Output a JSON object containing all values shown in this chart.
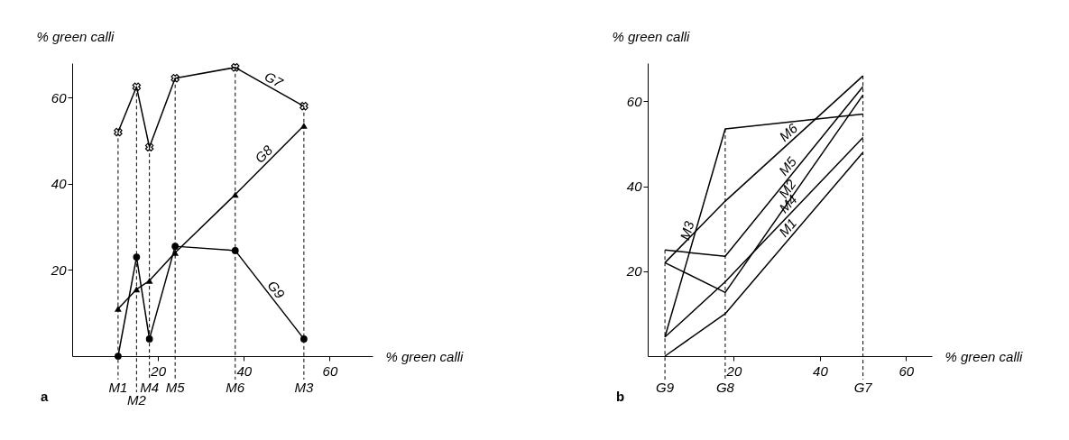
{
  "chart_data": [
    {
      "type": "line",
      "xlabel": "% green calli",
      "ylabel": "% green calli",
      "x": [
        10.7,
        15,
        18,
        24,
        38,
        54
      ],
      "xlim": [
        0,
        70
      ],
      "ylim": [
        0,
        68
      ],
      "xticks": [
        20,
        40,
        60
      ],
      "yticks": [
        20,
        40,
        60
      ],
      "grid": false,
      "annotations": [
        "a"
      ],
      "series": [
        {
          "name": "G7",
          "color": "#000000",
          "marker": "cross",
          "values": [
            52,
            62.5,
            48.5,
            64.5,
            67,
            58
          ]
        },
        {
          "name": "G8",
          "color": "#000000",
          "marker": "triangle",
          "values": [
            11,
            15.5,
            17.5,
            24,
            37.5,
            53.5
          ]
        },
        {
          "name": "G9",
          "color": "#000000",
          "marker": "circle",
          "values": [
            0,
            23,
            4,
            25.5,
            24.5,
            4
          ]
        }
      ],
      "ref_lines": [
        {
          "axis": "x",
          "value": 10.7,
          "label": "M1",
          "line_style": "dashed"
        },
        {
          "axis": "x",
          "value": 15,
          "label": "M2",
          "line_style": "dashed"
        },
        {
          "axis": "x",
          "value": 18,
          "label": "M4",
          "line_style": "dashed"
        },
        {
          "axis": "x",
          "value": 24,
          "label": "M5",
          "line_style": "dashed"
        },
        {
          "axis": "x",
          "value": 38,
          "label": "M6",
          "line_style": "dashed"
        },
        {
          "axis": "x",
          "value": 54,
          "label": "M3",
          "line_style": "dashed"
        }
      ]
    },
    {
      "type": "line",
      "xlabel": "% green calli",
      "ylabel": "% green calli",
      "x": [
        4,
        18,
        50
      ],
      "xlim": [
        0,
        66
      ],
      "ylim": [
        0,
        69
      ],
      "xticks": [
        20,
        40,
        60
      ],
      "yticks": [
        20,
        40,
        60
      ],
      "grid": false,
      "annotations": [
        "b"
      ],
      "series": [
        {
          "name": "M1",
          "color": "#000000",
          "values": [
            0,
            10,
            48
          ]
        },
        {
          "name": "M2",
          "color": "#000000",
          "values": [
            22,
            15,
            61.5
          ]
        },
        {
          "name": "M3",
          "color": "#000000",
          "values": [
            4.5,
            53.5,
            57
          ]
        },
        {
          "name": "M4",
          "color": "#000000",
          "values": [
            4.5,
            17.5,
            51.5
          ]
        },
        {
          "name": "M5",
          "color": "#000000",
          "values": [
            25,
            23.5,
            63.5
          ]
        },
        {
          "name": "M6",
          "color": "#000000",
          "values": [
            22,
            36.5,
            66
          ]
        }
      ],
      "ref_lines": [
        {
          "axis": "x",
          "value": 4,
          "label": "G9",
          "line_style": "dashed"
        },
        {
          "axis": "x",
          "value": 18,
          "label": "G8",
          "line_style": "dashed"
        },
        {
          "axis": "x",
          "value": 50,
          "label": "G7",
          "line_style": "dashed"
        }
      ]
    }
  ]
}
